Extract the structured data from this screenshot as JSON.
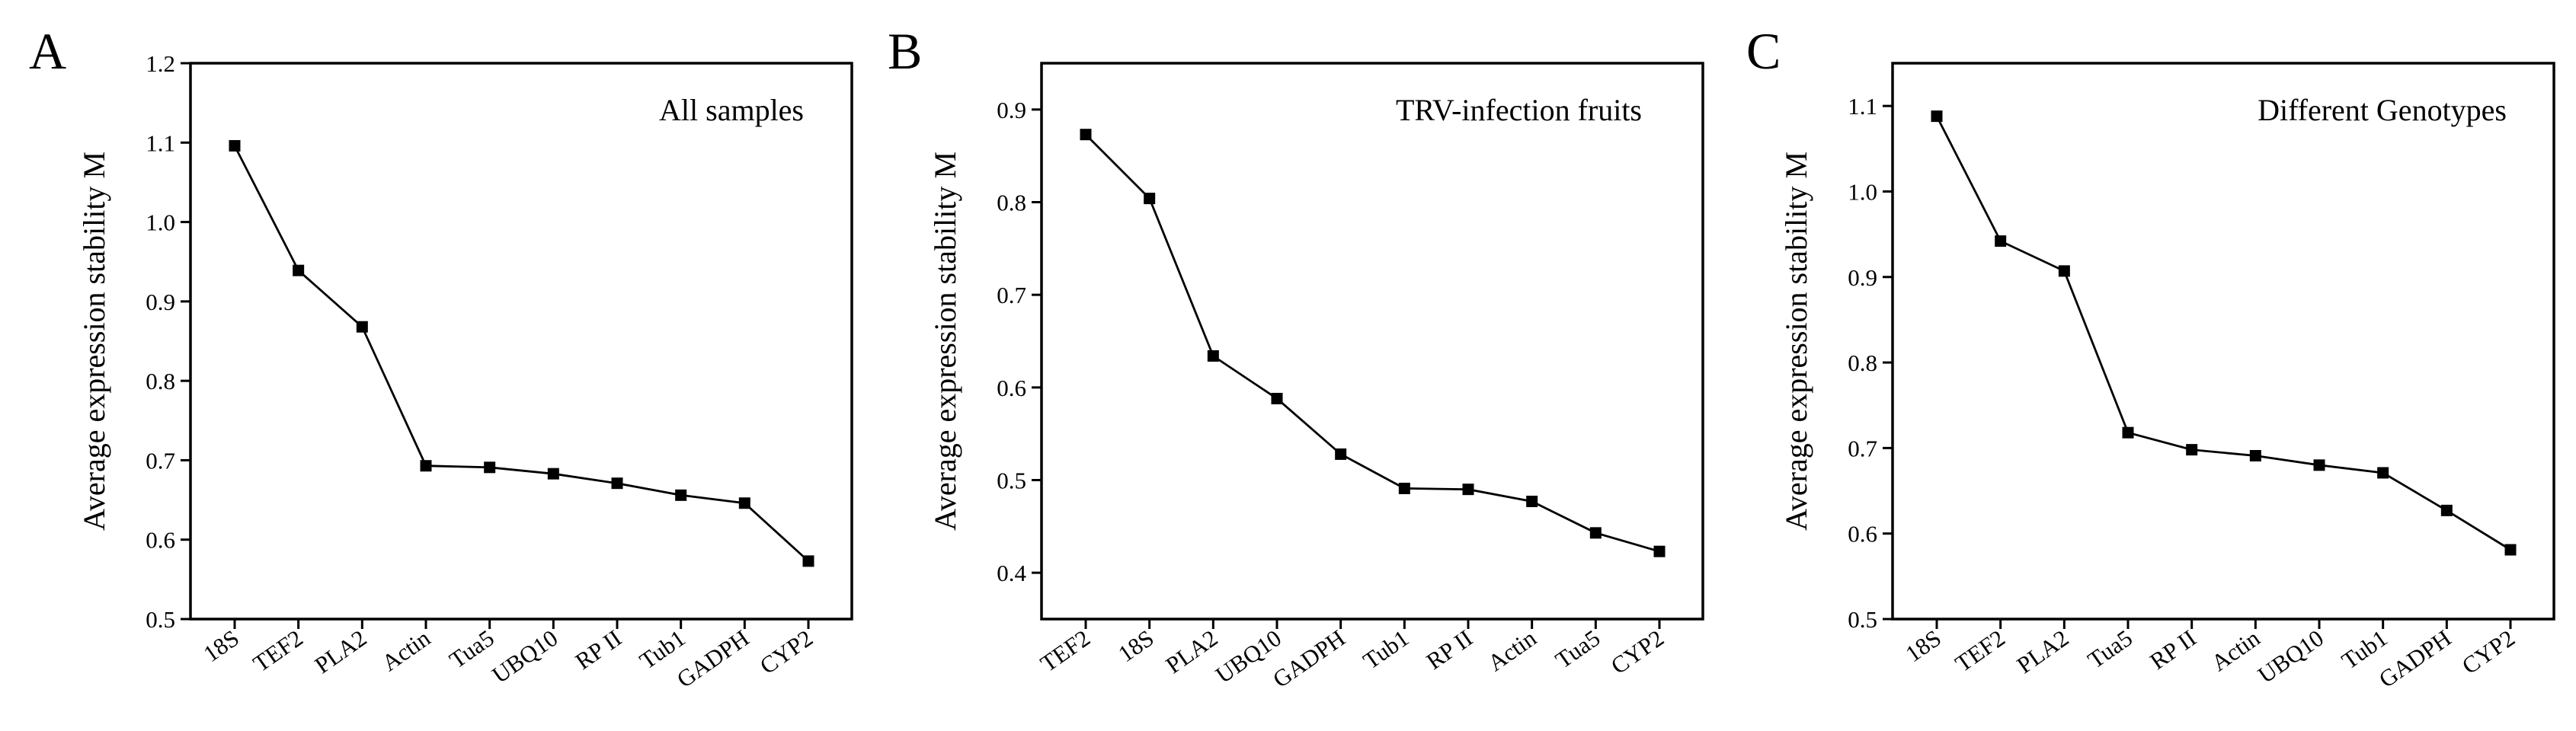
{
  "chart_data": [
    {
      "type": "line",
      "panel": "A",
      "title": "All samples",
      "xlabel": "",
      "ylabel": "Average expression stability M",
      "ylim": [
        0.5,
        1.2
      ],
      "yticks": [
        0.5,
        0.6,
        0.7,
        0.8,
        0.9,
        1.0,
        1.1,
        1.2
      ],
      "ytick_labels": [
        "0.5",
        "0.6",
        "0.7",
        "0.8",
        "0.9",
        "1.0",
        "1.1",
        "1.2"
      ],
      "categories": [
        "18S",
        "TEF2",
        "PLA2",
        "Actin",
        "Tua5",
        "UBQ10",
        "RP II",
        "Tub1",
        "GADPH",
        "CYP2"
      ],
      "values": [
        1.096,
        0.939,
        0.868,
        0.693,
        0.691,
        0.683,
        0.671,
        0.656,
        0.646,
        0.573
      ],
      "grid": false,
      "legend": "none"
    },
    {
      "type": "line",
      "panel": "B",
      "title": "TRV-infection fruits",
      "xlabel": "",
      "ylabel": "Average expression stability M",
      "ylim": [
        0.35,
        0.95
      ],
      "yticks": [
        0.4,
        0.5,
        0.6,
        0.7,
        0.8,
        0.9
      ],
      "ytick_labels": [
        "0.4",
        "0.5",
        "0.6",
        "0.7",
        "0.8",
        "0.9"
      ],
      "categories": [
        "TEF2",
        "18S",
        "PLA2",
        "UBQ10",
        "GADPH",
        "Tub1",
        "RP II",
        "Actin",
        "Tua5",
        "CYP2"
      ],
      "values": [
        0.873,
        0.804,
        0.634,
        0.588,
        0.528,
        0.491,
        0.49,
        0.477,
        0.443,
        0.423
      ],
      "grid": false,
      "legend": "none"
    },
    {
      "type": "line",
      "panel": "C",
      "title": "Different Genotypes",
      "xlabel": "",
      "ylabel": "Average expression stability M",
      "ylim": [
        0.5,
        1.15
      ],
      "yticks": [
        0.5,
        0.6,
        0.7,
        0.8,
        0.9,
        1.0,
        1.1
      ],
      "ytick_labels": [
        "0.5",
        "0.6",
        "0.7",
        "0.8",
        "0.9",
        "1.0",
        "1.1"
      ],
      "categories": [
        "18S",
        "TEF2",
        "PLA2",
        "Tua5",
        "RP II",
        "Actin",
        "UBQ10",
        "Tub1",
        "GADPH",
        "CYP2"
      ],
      "values": [
        1.088,
        0.942,
        0.907,
        0.718,
        0.698,
        0.691,
        0.68,
        0.671,
        0.627,
        0.581
      ],
      "grid": false,
      "legend": "none"
    }
  ]
}
